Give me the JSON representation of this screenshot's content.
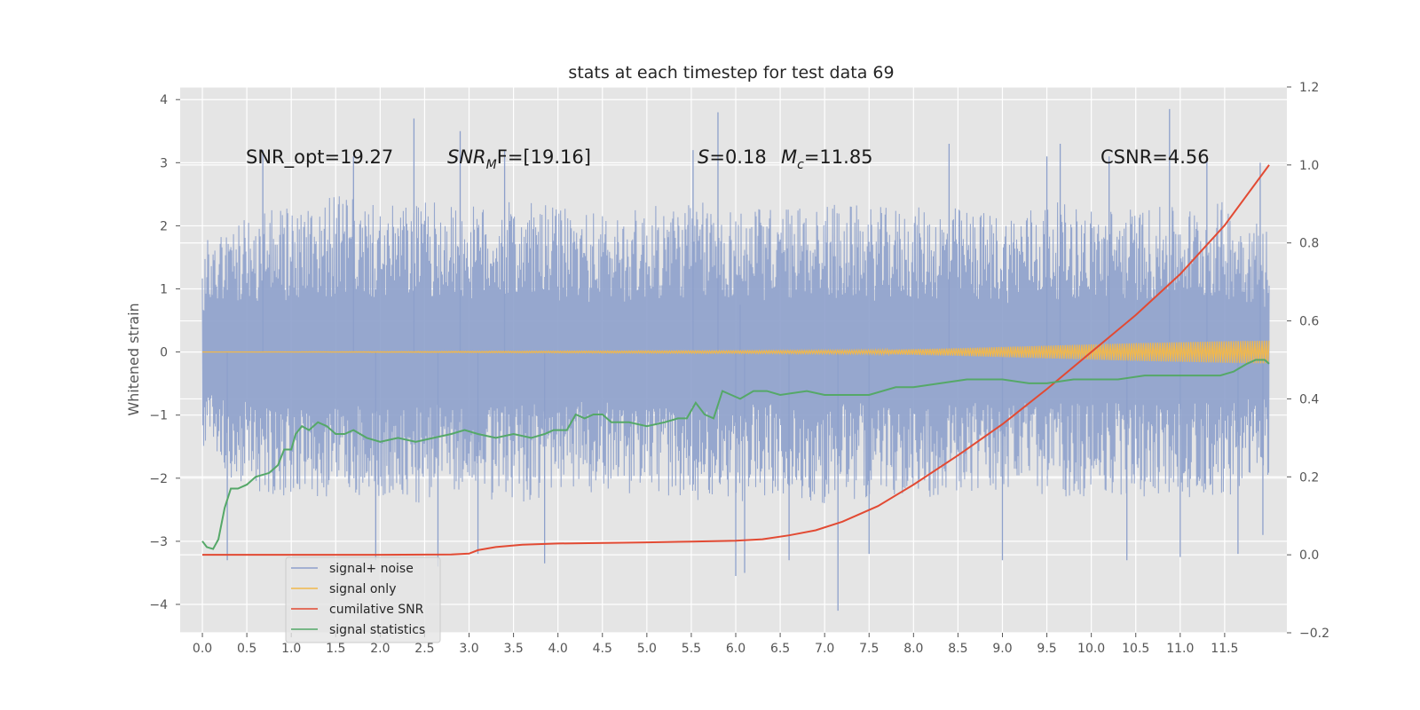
{
  "chart_data": {
    "type": "line",
    "title": "stats at each timestep for test data 69",
    "ylabel": "Whitened strain",
    "xlabel": "",
    "xlim": [
      -0.25,
      12.2
    ],
    "ylim": [
      -4.45,
      4.2
    ],
    "y2lim": [
      -0.2,
      1.2
    ],
    "grid": true,
    "legend_placement": "lower-left",
    "x_ticks": [
      "0.0",
      "0.5",
      "1.0",
      "1.5",
      "2.0",
      "2.5",
      "3.0",
      "3.5",
      "4.0",
      "4.5",
      "5.0",
      "5.5",
      "6.0",
      "6.5",
      "7.0",
      "7.5",
      "8.0",
      "8.5",
      "9.0",
      "9.5",
      "10.0",
      "10.5",
      "11.0",
      "11.5"
    ],
    "y_ticks": [
      "4",
      "3",
      "2",
      "1",
      "0",
      "−1",
      "−2",
      "−3",
      "−4"
    ],
    "y2_ticks": [
      "1.2",
      "1.0",
      "0.8",
      "0.6",
      "0.4",
      "0.2",
      "0.0",
      "−0.2"
    ],
    "annotations": {
      "snr_opt": "SNR_opt=19.27",
      "snr_mf_main": "SNR",
      "snr_mf_sub": "M",
      "snr_mf_tail": "F=[19.16]",
      "s_var": "S",
      "s_val": "=0.18",
      "mc_var": "M",
      "mc_sub": "c",
      "mc_val": "=11.85",
      "csnr": "CSNR=4.56"
    },
    "legend": [
      "signal+ noise",
      "signal only",
      "cumilative SNR",
      "signal statistics"
    ],
    "series": [
      {
        "name": "signal+ noise",
        "axis": "left",
        "color": "#8da0cb",
        "x_range": [
          0.0,
          12.0
        ],
        "upper_envelope": [
          [
            0.0,
            1.8
          ],
          [
            0.5,
            2.2
          ],
          [
            1.0,
            2.3
          ],
          [
            1.5,
            2.5
          ],
          [
            2.0,
            2.3
          ],
          [
            2.5,
            2.4
          ],
          [
            3.0,
            2.3
          ],
          [
            3.5,
            2.4
          ],
          [
            4.0,
            2.3
          ],
          [
            4.5,
            2.2
          ],
          [
            5.0,
            2.3
          ],
          [
            5.5,
            2.4
          ],
          [
            6.0,
            2.3
          ],
          [
            6.5,
            2.3
          ],
          [
            7.0,
            2.4
          ],
          [
            7.5,
            2.3
          ],
          [
            8.0,
            2.3
          ],
          [
            8.5,
            2.3
          ],
          [
            9.0,
            2.2
          ],
          [
            9.5,
            2.4
          ],
          [
            10.0,
            2.3
          ],
          [
            10.5,
            2.3
          ],
          [
            11.0,
            2.3
          ],
          [
            11.5,
            2.4
          ],
          [
            12.0,
            2.0
          ]
        ],
        "lower_envelope": [
          [
            0.0,
            -1.6
          ],
          [
            0.5,
            -2.2
          ],
          [
            1.0,
            -2.3
          ],
          [
            1.5,
            -2.3
          ],
          [
            2.0,
            -2.3
          ],
          [
            2.5,
            -2.4
          ],
          [
            3.0,
            -2.3
          ],
          [
            3.5,
            -2.4
          ],
          [
            4.0,
            -2.3
          ],
          [
            4.5,
            -2.2
          ],
          [
            5.0,
            -2.3
          ],
          [
            5.5,
            -2.4
          ],
          [
            6.0,
            -2.4
          ],
          [
            6.5,
            -2.3
          ],
          [
            7.0,
            -2.4
          ],
          [
            7.5,
            -2.3
          ],
          [
            8.0,
            -2.3
          ],
          [
            8.5,
            -2.3
          ],
          [
            9.0,
            -2.2
          ],
          [
            9.5,
            -2.3
          ],
          [
            10.0,
            -2.3
          ],
          [
            10.5,
            -2.3
          ],
          [
            11.0,
            -2.3
          ],
          [
            11.5,
            -2.3
          ],
          [
            12.0,
            -2.0
          ]
        ],
        "peaks": [
          [
            0.68,
            3.2
          ],
          [
            1.7,
            3.1
          ],
          [
            2.38,
            3.7
          ],
          [
            2.9,
            3.5
          ],
          [
            3.4,
            3.2
          ],
          [
            5.52,
            3.2
          ],
          [
            5.8,
            3.8
          ],
          [
            6.05,
            0.75
          ],
          [
            8.4,
            3.3
          ],
          [
            9.5,
            3.1
          ],
          [
            9.65,
            3.3
          ],
          [
            10.2,
            3.1
          ],
          [
            10.88,
            3.85
          ],
          [
            11.3,
            3.1
          ],
          [
            11.9,
            3.0
          ]
        ],
        "troughs": [
          [
            0.28,
            -3.3
          ],
          [
            1.95,
            -3.3
          ],
          [
            2.65,
            -3.4
          ],
          [
            3.1,
            -3.2
          ],
          [
            3.85,
            -3.35
          ],
          [
            6.0,
            -3.55
          ],
          [
            6.1,
            -3.5
          ],
          [
            6.6,
            -3.3
          ],
          [
            7.15,
            -4.1
          ],
          [
            7.5,
            -3.2
          ],
          [
            9.0,
            -3.3
          ],
          [
            10.4,
            -3.3
          ],
          [
            11.0,
            -3.25
          ],
          [
            11.65,
            -3.2
          ],
          [
            11.93,
            -2.9
          ]
        ]
      },
      {
        "name": "signal only",
        "axis": "left",
        "color": "#f2b84b",
        "points": [
          [
            0.0,
            0.0
          ],
          [
            3.0,
            0.01
          ],
          [
            6.0,
            0.02
          ],
          [
            7.5,
            0.03
          ],
          [
            8.5,
            0.06
          ],
          [
            9.5,
            0.1
          ],
          [
            10.5,
            0.14
          ],
          [
            11.5,
            0.17
          ],
          [
            12.0,
            0.18
          ]
        ]
      },
      {
        "name": "cumilative SNR",
        "axis": "right",
        "color": "#e24a33",
        "points": [
          [
            0.0,
            0.0
          ],
          [
            1.0,
            0.0
          ],
          [
            2.0,
            0.0
          ],
          [
            2.8,
            0.001
          ],
          [
            3.0,
            0.003
          ],
          [
            3.1,
            0.012
          ],
          [
            3.3,
            0.02
          ],
          [
            3.6,
            0.026
          ],
          [
            4.0,
            0.029
          ],
          [
            5.0,
            0.032
          ],
          [
            5.5,
            0.034
          ],
          [
            6.0,
            0.036
          ],
          [
            6.3,
            0.04
          ],
          [
            6.6,
            0.05
          ],
          [
            6.9,
            0.063
          ],
          [
            7.2,
            0.085
          ],
          [
            7.6,
            0.125
          ],
          [
            8.0,
            0.18
          ],
          [
            8.5,
            0.255
          ],
          [
            9.0,
            0.335
          ],
          [
            9.5,
            0.425
          ],
          [
            10.0,
            0.52
          ],
          [
            10.5,
            0.615
          ],
          [
            11.0,
            0.72
          ],
          [
            11.5,
            0.845
          ],
          [
            12.0,
            1.0
          ]
        ]
      },
      {
        "name": "signal statistics",
        "axis": "right",
        "color": "#55a868",
        "points": [
          [
            0.0,
            0.035
          ],
          [
            0.05,
            0.02
          ],
          [
            0.12,
            0.015
          ],
          [
            0.18,
            0.04
          ],
          [
            0.25,
            0.12
          ],
          [
            0.32,
            0.17
          ],
          [
            0.4,
            0.17
          ],
          [
            0.5,
            0.18
          ],
          [
            0.6,
            0.2
          ],
          [
            0.75,
            0.21
          ],
          [
            0.85,
            0.23
          ],
          [
            0.92,
            0.27
          ],
          [
            1.0,
            0.27
          ],
          [
            1.05,
            0.31
          ],
          [
            1.12,
            0.33
          ],
          [
            1.2,
            0.32
          ],
          [
            1.3,
            0.34
          ],
          [
            1.4,
            0.33
          ],
          [
            1.5,
            0.31
          ],
          [
            1.6,
            0.31
          ],
          [
            1.7,
            0.32
          ],
          [
            1.85,
            0.3
          ],
          [
            2.0,
            0.29
          ],
          [
            2.2,
            0.3
          ],
          [
            2.4,
            0.29
          ],
          [
            2.6,
            0.3
          ],
          [
            2.8,
            0.31
          ],
          [
            2.95,
            0.32
          ],
          [
            3.1,
            0.31
          ],
          [
            3.3,
            0.3
          ],
          [
            3.5,
            0.31
          ],
          [
            3.7,
            0.3
          ],
          [
            3.85,
            0.31
          ],
          [
            3.95,
            0.32
          ],
          [
            4.1,
            0.32
          ],
          [
            4.2,
            0.36
          ],
          [
            4.3,
            0.35
          ],
          [
            4.4,
            0.36
          ],
          [
            4.5,
            0.36
          ],
          [
            4.6,
            0.34
          ],
          [
            4.8,
            0.34
          ],
          [
            5.0,
            0.33
          ],
          [
            5.2,
            0.34
          ],
          [
            5.35,
            0.35
          ],
          [
            5.45,
            0.35
          ],
          [
            5.55,
            0.39
          ],
          [
            5.65,
            0.36
          ],
          [
            5.75,
            0.35
          ],
          [
            5.85,
            0.42
          ],
          [
            5.95,
            0.41
          ],
          [
            6.05,
            0.4
          ],
          [
            6.2,
            0.42
          ],
          [
            6.35,
            0.42
          ],
          [
            6.5,
            0.41
          ],
          [
            6.8,
            0.42
          ],
          [
            7.0,
            0.41
          ],
          [
            7.3,
            0.41
          ],
          [
            7.5,
            0.41
          ],
          [
            7.8,
            0.43
          ],
          [
            8.0,
            0.43
          ],
          [
            8.3,
            0.44
          ],
          [
            8.6,
            0.45
          ],
          [
            8.8,
            0.45
          ],
          [
            9.0,
            0.45
          ],
          [
            9.3,
            0.44
          ],
          [
            9.5,
            0.44
          ],
          [
            9.8,
            0.45
          ],
          [
            10.0,
            0.45
          ],
          [
            10.3,
            0.45
          ],
          [
            10.6,
            0.46
          ],
          [
            10.9,
            0.46
          ],
          [
            11.2,
            0.46
          ],
          [
            11.45,
            0.46
          ],
          [
            11.6,
            0.47
          ],
          [
            11.75,
            0.49
          ],
          [
            11.85,
            0.5
          ],
          [
            11.95,
            0.5
          ],
          [
            12.0,
            0.49
          ]
        ]
      }
    ]
  }
}
